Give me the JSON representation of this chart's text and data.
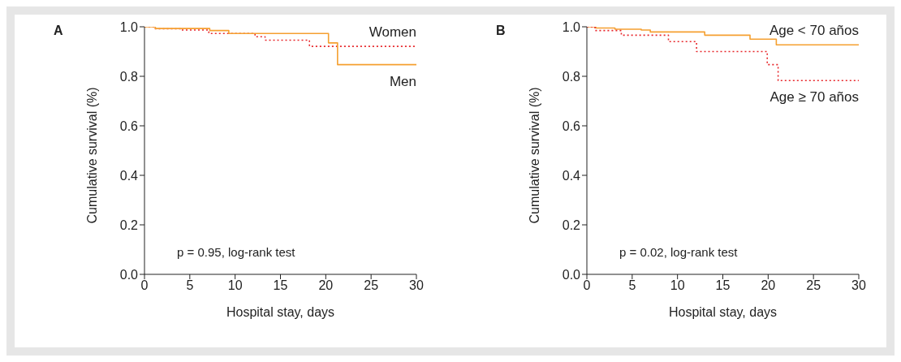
{
  "chart_data": [
    {
      "type": "step",
      "title": "A",
      "xlabel": "Hospital stay, days",
      "ylabel": "Cumulative survival (%)",
      "xlim": [
        0,
        30
      ],
      "xticks": [
        0,
        5,
        10,
        15,
        20,
        25,
        30
      ],
      "ylim": [
        0,
        1
      ],
      "yticks": [
        {
          "value": 0,
          "label": "0.0"
        },
        {
          "value": 0.2,
          "label": "0.2"
        },
        {
          "value": 0.4,
          "label": "0.4"
        },
        {
          "value": 0.6,
          "label": "0.6"
        },
        {
          "value": 0.8,
          "label": "0.8"
        },
        {
          "value": 1,
          "label": "1.0"
        }
      ],
      "marker": "none",
      "annotations": [
        "p = 0.95, log-rank test"
      ],
      "series": [
        {
          "name": "Women",
          "color": "#e8282c",
          "line_style": "dotted",
          "x": [
            0,
            1.2,
            4.1,
            7.1,
            12.2,
            13.3,
            18.2,
            30
          ],
          "values": [
            1,
            0.992,
            0.987,
            0.973,
            0.96,
            0.946,
            0.921,
            0.921
          ]
        },
        {
          "name": "Men",
          "color": "#f5a030",
          "line_style": "solid",
          "x": [
            0,
            1.2,
            7.2,
            9.3,
            20.3,
            21.3,
            30
          ],
          "values": [
            1,
            0.993,
            0.985,
            0.973,
            0.935,
            0.847,
            0.847
          ]
        }
      ]
    },
    {
      "type": "step",
      "title": "B",
      "xlabel": "Hospital stay, days",
      "ylabel": "Cumulative survival (%)",
      "xlim": [
        0,
        30
      ],
      "xticks": [
        0,
        5,
        10,
        15,
        20,
        25,
        30
      ],
      "ylim": [
        0,
        1
      ],
      "yticks": [
        {
          "value": 0,
          "label": "0.0"
        },
        {
          "value": 0.2,
          "label": "0.2"
        },
        {
          "value": 0.4,
          "label": "0.4"
        },
        {
          "value": 0.6,
          "label": "0.6"
        },
        {
          "value": 0.8,
          "label": "0.8"
        },
        {
          "value": 1,
          "label": "1.0"
        }
      ],
      "marker": "none",
      "annotations": [
        "p = 0.02, log-rank test"
      ],
      "series": [
        {
          "name": "Age < 70 años",
          "color": "#f5a030",
          "line_style": "solid",
          "x": [
            0,
            1,
            3.1,
            6,
            7,
            13,
            18,
            20.9,
            30
          ],
          "values": [
            1,
            0.995,
            0.99,
            0.987,
            0.979,
            0.966,
            0.95,
            0.927,
            0.927
          ]
        },
        {
          "name": "Age ≥ 70 años",
          "color": "#e8282c",
          "line_style": "dotted",
          "x": [
            0,
            0.9,
            3.8,
            9,
            12.1,
            19.9,
            21.1,
            30
          ],
          "values": [
            1,
            0.985,
            0.966,
            0.94,
            0.9,
            0.847,
            0.783,
            0.783
          ]
        }
      ]
    }
  ]
}
